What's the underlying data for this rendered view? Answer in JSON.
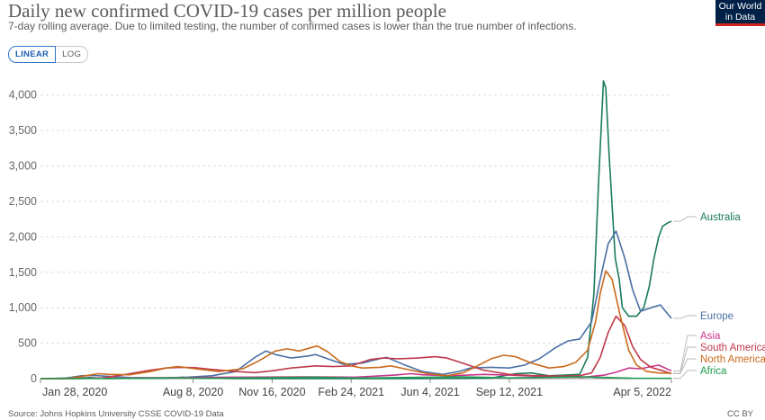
{
  "header": {
    "title": "Daily new confirmed COVID-19 cases per million people",
    "subtitle": "7-day rolling average. Due to limited testing, the number of confirmed cases is lower than the true number of infections."
  },
  "logo": {
    "line1": "Our World",
    "line2": "in Data"
  },
  "scale_toggle": {
    "linear_label": "LINEAR",
    "log_label": "LOG",
    "selected": "LINEAR"
  },
  "footer": {
    "source": "Source: Johns Hopkins University CSSE COVID-19 Data",
    "license": "CC BY"
  },
  "colors": {
    "Australia": "#1a7a5e",
    "Europe": "#4a6fa5",
    "Asia": "#c8348c",
    "South America": "#c0394b",
    "North America": "#c96a1c",
    "Africa": "#1e9a50"
  },
  "chart_data": {
    "type": "line",
    "title": "Daily new confirmed COVID-19 cases per million people",
    "subtitle": "7-day rolling average. Due to limited testing, the number of confirmed cases is lower than the true number of infections.",
    "x_type": "date",
    "xlim": [
      "2020-01-28",
      "2022-04-05"
    ],
    "ylim": [
      0,
      4250
    ],
    "grid": true,
    "legend": "right, labels at line ends",
    "x_ticks": [
      {
        "date": "2020-01-28",
        "label": "Jan 28, 2020"
      },
      {
        "date": "2020-08-08",
        "label": "Aug 8, 2020"
      },
      {
        "date": "2020-11-16",
        "label": "Nov 16, 2020"
      },
      {
        "date": "2021-02-24",
        "label": "Feb 24, 2021"
      },
      {
        "date": "2021-06-04",
        "label": "Jun 4, 2021"
      },
      {
        "date": "2021-09-12",
        "label": "Sep 12, 2021"
      },
      {
        "date": "2022-04-05",
        "label": "Apr 5, 2022"
      }
    ],
    "y_ticks": [
      {
        "value": 0,
        "label": "0"
      },
      {
        "value": 500,
        "label": "500"
      },
      {
        "value": 1000,
        "label": "1,000"
      },
      {
        "value": 1500,
        "label": "1,500"
      },
      {
        "value": 2000,
        "label": "2,000"
      },
      {
        "value": 2500,
        "label": "2,500"
      },
      {
        "value": 3000,
        "label": "3,000"
      },
      {
        "value": 3500,
        "label": "3,500"
      },
      {
        "value": 4000,
        "label": "4,000"
      }
    ],
    "series": [
      {
        "name": "Australia",
        "points": [
          [
            "2020-01-28",
            0
          ],
          [
            "2020-03-20",
            10
          ],
          [
            "2020-03-30",
            15
          ],
          [
            "2020-04-20",
            1
          ],
          [
            "2020-07-01",
            5
          ],
          [
            "2020-07-25",
            18
          ],
          [
            "2020-08-20",
            8
          ],
          [
            "2020-10-01",
            1
          ],
          [
            "2021-06-01",
            0
          ],
          [
            "2021-07-10",
            2
          ],
          [
            "2021-08-20",
            8
          ],
          [
            "2021-09-20",
            70
          ],
          [
            "2021-10-10",
            80
          ],
          [
            "2021-11-01",
            40
          ],
          [
            "2021-12-10",
            60
          ],
          [
            "2021-12-20",
            300
          ],
          [
            "2021-12-28",
            1200
          ],
          [
            "2022-01-03",
            2800
          ],
          [
            "2022-01-09",
            4200
          ],
          [
            "2022-01-12",
            4100
          ],
          [
            "2022-01-16",
            3200
          ],
          [
            "2022-01-24",
            1700
          ],
          [
            "2022-01-29",
            1400
          ],
          [
            "2022-02-02",
            1000
          ],
          [
            "2022-02-10",
            880
          ],
          [
            "2022-02-20",
            880
          ],
          [
            "2022-03-01",
            1000
          ],
          [
            "2022-03-08",
            1300
          ],
          [
            "2022-03-14",
            1700
          ],
          [
            "2022-03-20",
            2000
          ],
          [
            "2022-03-25",
            2150
          ],
          [
            "2022-04-01",
            2200
          ],
          [
            "2022-04-05",
            2220
          ]
        ]
      },
      {
        "name": "Europe",
        "points": [
          [
            "2020-01-28",
            0
          ],
          [
            "2020-02-28",
            5
          ],
          [
            "2020-03-20",
            40
          ],
          [
            "2020-04-05",
            45
          ],
          [
            "2020-04-25",
            30
          ],
          [
            "2020-05-20",
            15
          ],
          [
            "2020-07-01",
            10
          ],
          [
            "2020-08-01",
            20
          ],
          [
            "2020-09-01",
            40
          ],
          [
            "2020-10-01",
            100
          ],
          [
            "2020-10-25",
            300
          ],
          [
            "2020-11-08",
            390
          ],
          [
            "2020-11-20",
            340
          ],
          [
            "2020-12-10",
            290
          ],
          [
            "2021-01-01",
            320
          ],
          [
            "2021-01-10",
            340
          ],
          [
            "2021-01-25",
            280
          ],
          [
            "2021-02-15",
            200
          ],
          [
            "2021-03-10",
            220
          ],
          [
            "2021-04-01",
            280
          ],
          [
            "2021-04-10",
            300
          ],
          [
            "2021-05-01",
            200
          ],
          [
            "2021-05-25",
            100
          ],
          [
            "2021-06-20",
            60
          ],
          [
            "2021-07-10",
            100
          ],
          [
            "2021-07-25",
            150
          ],
          [
            "2021-08-20",
            160
          ],
          [
            "2021-09-12",
            150
          ],
          [
            "2021-10-01",
            190
          ],
          [
            "2021-10-20",
            280
          ],
          [
            "2021-11-10",
            440
          ],
          [
            "2021-11-25",
            530
          ],
          [
            "2021-12-10",
            560
          ],
          [
            "2021-12-25",
            800
          ],
          [
            "2022-01-05",
            1400
          ],
          [
            "2022-01-15",
            1900
          ],
          [
            "2022-01-25",
            2080
          ],
          [
            "2022-02-05",
            1700
          ],
          [
            "2022-02-15",
            1250
          ],
          [
            "2022-02-25",
            950
          ],
          [
            "2022-03-10",
            1000
          ],
          [
            "2022-03-22",
            1040
          ],
          [
            "2022-04-05",
            850
          ]
        ]
      },
      {
        "name": "Asia",
        "points": [
          [
            "2020-01-28",
            0
          ],
          [
            "2020-04-01",
            5
          ],
          [
            "2020-06-01",
            10
          ],
          [
            "2020-08-01",
            15
          ],
          [
            "2020-10-01",
            20
          ],
          [
            "2021-01-01",
            25
          ],
          [
            "2021-03-01",
            20
          ],
          [
            "2021-04-20",
            50
          ],
          [
            "2021-05-10",
            70
          ],
          [
            "2021-05-25",
            55
          ],
          [
            "2021-07-01",
            40
          ],
          [
            "2021-08-10",
            60
          ],
          [
            "2021-09-12",
            50
          ],
          [
            "2021-11-01",
            25
          ],
          [
            "2021-12-15",
            20
          ],
          [
            "2022-01-10",
            50
          ],
          [
            "2022-01-25",
            90
          ],
          [
            "2022-02-10",
            150
          ],
          [
            "2022-02-25",
            140
          ],
          [
            "2022-03-10",
            170
          ],
          [
            "2022-03-20",
            190
          ],
          [
            "2022-03-28",
            150
          ],
          [
            "2022-04-05",
            110
          ]
        ]
      },
      {
        "name": "South America",
        "points": [
          [
            "2020-01-28",
            0
          ],
          [
            "2020-03-15",
            0
          ],
          [
            "2020-04-15",
            10
          ],
          [
            "2020-05-15",
            60
          ],
          [
            "2020-06-10",
            110
          ],
          [
            "2020-07-05",
            150
          ],
          [
            "2020-07-25",
            160
          ],
          [
            "2020-08-10",
            155
          ],
          [
            "2020-09-01",
            130
          ],
          [
            "2020-10-01",
            100
          ],
          [
            "2020-10-25",
            85
          ],
          [
            "2020-11-16",
            110
          ],
          [
            "2020-12-10",
            150
          ],
          [
            "2021-01-10",
            180
          ],
          [
            "2021-02-01",
            170
          ],
          [
            "2021-02-24",
            180
          ],
          [
            "2021-03-20",
            270
          ],
          [
            "2021-04-05",
            290
          ],
          [
            "2021-04-25",
            280
          ],
          [
            "2021-05-20",
            290
          ],
          [
            "2021-06-10",
            310
          ],
          [
            "2021-06-25",
            290
          ],
          [
            "2021-07-20",
            200
          ],
          [
            "2021-08-10",
            120
          ],
          [
            "2021-09-12",
            60
          ],
          [
            "2021-10-10",
            45
          ],
          [
            "2021-11-10",
            35
          ],
          [
            "2021-12-10",
            40
          ],
          [
            "2021-12-25",
            80
          ],
          [
            "2022-01-05",
            300
          ],
          [
            "2022-01-15",
            650
          ],
          [
            "2022-01-25",
            880
          ],
          [
            "2022-02-05",
            750
          ],
          [
            "2022-02-15",
            450
          ],
          [
            "2022-02-25",
            270
          ],
          [
            "2022-03-10",
            160
          ],
          [
            "2022-03-25",
            110
          ],
          [
            "2022-04-05",
            70
          ]
        ]
      },
      {
        "name": "North America",
        "points": [
          [
            "2020-01-28",
            0
          ],
          [
            "2020-03-01",
            0
          ],
          [
            "2020-03-25",
            40
          ],
          [
            "2020-04-10",
            70
          ],
          [
            "2020-04-25",
            60
          ],
          [
            "2020-05-20",
            55
          ],
          [
            "2020-06-15",
            100
          ],
          [
            "2020-07-05",
            150
          ],
          [
            "2020-07-20",
            170
          ],
          [
            "2020-08-10",
            140
          ],
          [
            "2020-09-10",
            100
          ],
          [
            "2020-10-10",
            140
          ],
          [
            "2020-10-30",
            250
          ],
          [
            "2020-11-20",
            390
          ],
          [
            "2020-12-05",
            420
          ],
          [
            "2020-12-20",
            390
          ],
          [
            "2021-01-05",
            440
          ],
          [
            "2021-01-12",
            460
          ],
          [
            "2021-01-25",
            380
          ],
          [
            "2021-02-10",
            240
          ],
          [
            "2021-02-24",
            180
          ],
          [
            "2021-03-10",
            150
          ],
          [
            "2021-04-01",
            160
          ],
          [
            "2021-04-15",
            180
          ],
          [
            "2021-05-10",
            120
          ],
          [
            "2021-06-01",
            70
          ],
          [
            "2021-06-25",
            40
          ],
          [
            "2021-07-15",
            80
          ],
          [
            "2021-08-01",
            170
          ],
          [
            "2021-08-20",
            280
          ],
          [
            "2021-09-05",
            330
          ],
          [
            "2021-09-20",
            310
          ],
          [
            "2021-10-10",
            220
          ],
          [
            "2021-11-01",
            150
          ],
          [
            "2021-11-20",
            170
          ],
          [
            "2021-12-05",
            230
          ],
          [
            "2021-12-20",
            400
          ],
          [
            "2021-12-30",
            800
          ],
          [
            "2022-01-05",
            1200
          ],
          [
            "2022-01-12",
            1520
          ],
          [
            "2022-01-20",
            1400
          ],
          [
            "2022-01-30",
            900
          ],
          [
            "2022-02-10",
            400
          ],
          [
            "2022-02-20",
            190
          ],
          [
            "2022-03-05",
            100
          ],
          [
            "2022-03-20",
            80
          ],
          [
            "2022-04-05",
            75
          ]
        ]
      },
      {
        "name": "Africa",
        "points": [
          [
            "2020-01-28",
            0
          ],
          [
            "2020-05-01",
            2
          ],
          [
            "2020-07-20",
            10
          ],
          [
            "2020-09-01",
            5
          ],
          [
            "2021-01-10",
            20
          ],
          [
            "2021-03-01",
            8
          ],
          [
            "2021-07-15",
            25
          ],
          [
            "2021-09-12",
            10
          ],
          [
            "2021-12-15",
            25
          ],
          [
            "2022-01-01",
            20
          ],
          [
            "2022-02-15",
            5
          ],
          [
            "2022-04-05",
            4
          ]
        ]
      }
    ]
  }
}
